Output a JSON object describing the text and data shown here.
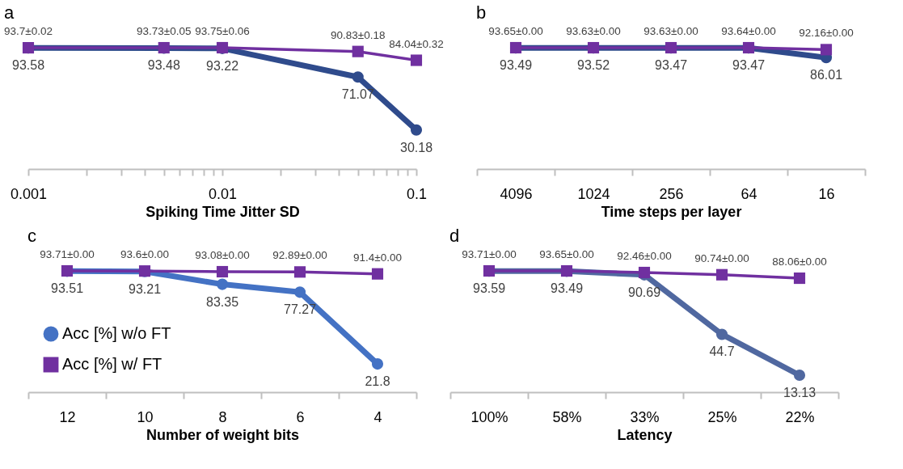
{
  "chart_data": [
    {
      "type": "line",
      "title": "a",
      "xlabel": "Spiking Time Jitter SD",
      "x": [
        0.001,
        0.005,
        0.01,
        0.05,
        0.1
      ],
      "log": "x",
      "xlim": [
        0.001,
        0.1
      ],
      "xticks": [
        0.001,
        {
          "value": 0.002,
          "label": null
        },
        {
          "value": 0.003,
          "label": null
        },
        {
          "value": 0.004,
          "label": null
        },
        {
          "value": 0.005,
          "label": null
        },
        {
          "value": 0.006,
          "label": null
        },
        {
          "value": 0.007,
          "label": null
        },
        {
          "value": 0.008,
          "label": null
        },
        {
          "value": 0.009,
          "label": null
        },
        0.01,
        {
          "value": 0.02,
          "label": null
        },
        {
          "value": 0.03,
          "label": null
        },
        {
          "value": 0.04,
          "label": null
        },
        {
          "value": 0.05,
          "label": null
        },
        {
          "value": 0.06,
          "label": null
        },
        {
          "value": 0.07,
          "label": null
        },
        {
          "value": 0.08,
          "label": null
        },
        {
          "value": 0.09,
          "label": null
        },
        0.1
      ],
      "tick_labels": "x",
      "grid": false,
      "legend": false,
      "series": [
        {
          "color": "#2f4b8c",
          "marker": "circle",
          "values": [
            93.58,
            93.48,
            93.22,
            71.07,
            30.18
          ],
          "value_labels": [
            "93.58",
            "93.48",
            "93.22",
            "71.07",
            "30.18"
          ]
        },
        {
          "color": "#7030a0",
          "marker": "square",
          "values": [
            93.7,
            93.73,
            93.75,
            90.83,
            84.04
          ],
          "value_labels": [
            "93.7±0.02",
            "93.73±0.05",
            "93.75±0.06",
            "90.83±0.18",
            "84.04±0.32"
          ]
        }
      ]
    },
    {
      "type": "line",
      "title": "b",
      "xlabel": "Time  steps per layer",
      "categories": [
        "4096",
        "1024",
        "256",
        "64",
        "16"
      ],
      "tick_labels": "x",
      "grid": false,
      "legend": false,
      "series": [
        {
          "color": "#2f4b8c",
          "marker": "circle",
          "values": [
            93.49,
            93.52,
            93.47,
            93.47,
            86.01
          ],
          "value_labels": [
            "93.49",
            "93.52",
            "93.47",
            "93.47",
            "86.01"
          ]
        },
        {
          "color": "#7030a0",
          "marker": "square",
          "values": [
            93.65,
            93.63,
            93.63,
            93.64,
            92.16
          ],
          "value_labels": [
            "93.65±0.00",
            "93.63±0.00",
            "93.63±0.00",
            "93.64±0.00",
            "92.16±0.00"
          ]
        }
      ]
    },
    {
      "type": "line",
      "title": "c",
      "xlabel": "Number of weight bits",
      "categories": [
        "12",
        "10",
        "8",
        "6",
        "4"
      ],
      "tick_labels": "x",
      "grid": false,
      "legend": "bottom left",
      "series": [
        {
          "name": "Acc [%] w/o FT",
          "color": "#4472c4",
          "marker": "circle",
          "values": [
            93.51,
            93.21,
            83.35,
            77.27,
            21.8
          ],
          "value_labels": [
            "93.51",
            "93.21",
            "83.35",
            "77.27",
            "21.8"
          ]
        },
        {
          "name": "Acc [%] w/ FT",
          "color": "#7030a0",
          "marker": "square",
          "values": [
            93.71,
            93.6,
            93.08,
            92.89,
            91.4
          ],
          "value_labels": [
            "93.71±0.00",
            "93.6±0.00",
            "93.08±0.00",
            "92.89±0.00",
            "91.4±0.00"
          ]
        }
      ]
    },
    {
      "type": "line",
      "title": "d",
      "xlabel": "Latency",
      "categories": [
        "100%",
        "58%",
        "33%",
        "25%",
        "22%"
      ],
      "tick_labels": "x",
      "grid": false,
      "legend": false,
      "series": [
        {
          "color": "#5068a0",
          "marker": "circle",
          "values": [
            93.59,
            93.49,
            90.69,
            44.7,
            13.13
          ],
          "value_labels": [
            "93.59",
            "93.49",
            "90.69",
            "44.7",
            "13.13"
          ]
        },
        {
          "color": "#7030a0",
          "marker": "square",
          "values": [
            93.71,
            93.65,
            92.46,
            90.74,
            88.06
          ],
          "value_labels": [
            "93.71±0.00",
            "93.65±0.00",
            "92.46±0.00",
            "90.74±0.00",
            "88.06±0.00"
          ]
        }
      ]
    }
  ]
}
